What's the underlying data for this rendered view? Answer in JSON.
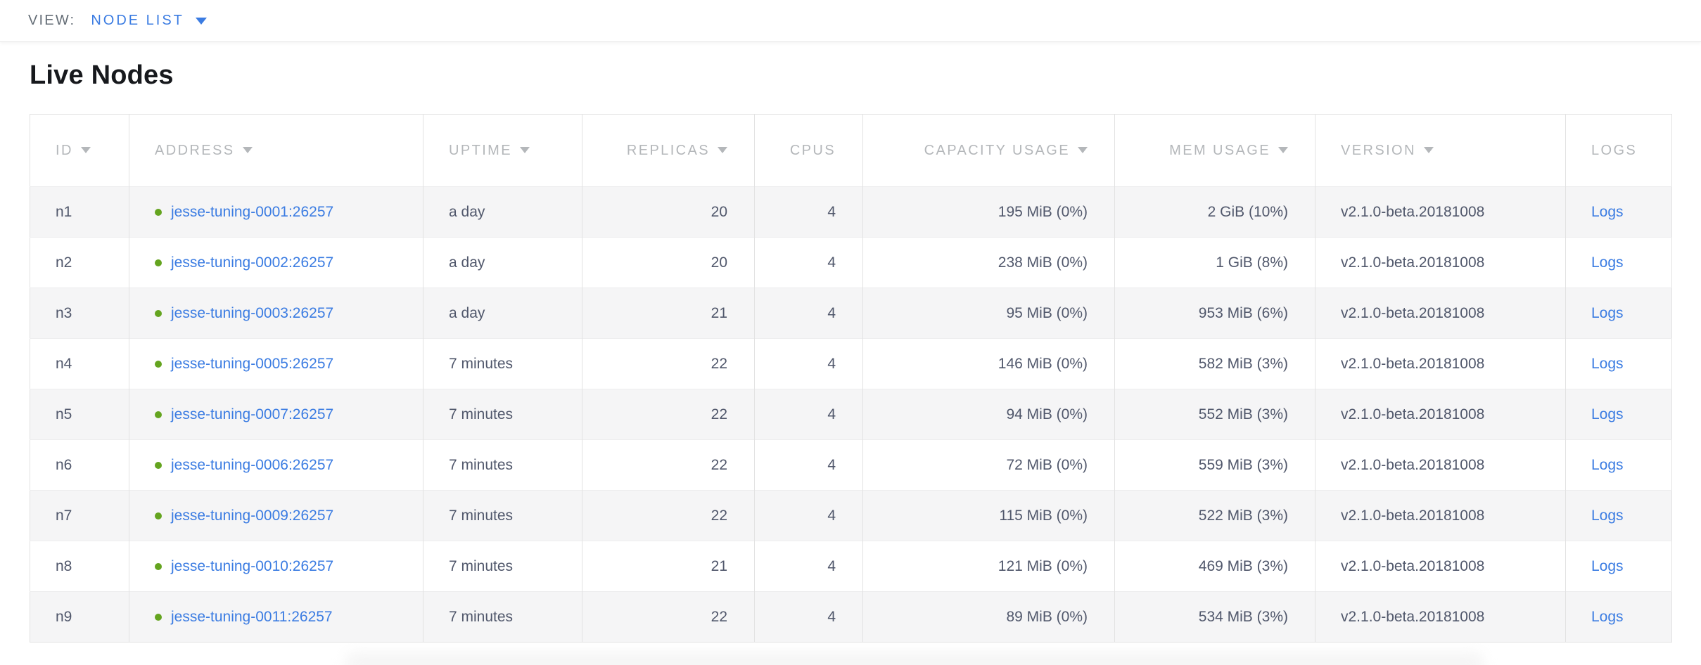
{
  "toolbar": {
    "view_label": "VIEW:",
    "view_value": "NODE LIST"
  },
  "page": {
    "title": "Live Nodes"
  },
  "colors": {
    "accent_blue": "#3b7ce2",
    "status_green": "#64a41f",
    "header_gray": "#b4b7ba",
    "cell_text": "#50576b",
    "row_stripe": "#f5f5f6"
  },
  "icons": {
    "view_caret": "caret-down-icon",
    "header_sort": "sort-desc-icon",
    "node_status": "green-dot-icon"
  },
  "table": {
    "headers": [
      {
        "label": "ID",
        "sorted": true
      },
      {
        "label": "ADDRESS",
        "sorted": true
      },
      {
        "label": "UPTIME",
        "sorted": true
      },
      {
        "label": "REPLICAS",
        "sorted": true
      },
      {
        "label": "CPUS",
        "sorted": false
      },
      {
        "label": "CAPACITY USAGE",
        "sorted": true
      },
      {
        "label": "MEM USAGE",
        "sorted": true
      },
      {
        "label": "VERSION",
        "sorted": true
      },
      {
        "label": "LOGS",
        "sorted": false
      }
    ],
    "rows": [
      {
        "id": "n1",
        "address": "jesse-tuning-0001:26257",
        "uptime": "a day",
        "replicas": "20",
        "cpus": "4",
        "capacity": "195 MiB (0%)",
        "mem": "2 GiB (10%)",
        "version": "v2.1.0-beta.20181008",
        "logs": "Logs"
      },
      {
        "id": "n2",
        "address": "jesse-tuning-0002:26257",
        "uptime": "a day",
        "replicas": "20",
        "cpus": "4",
        "capacity": "238 MiB (0%)",
        "mem": "1 GiB (8%)",
        "version": "v2.1.0-beta.20181008",
        "logs": "Logs"
      },
      {
        "id": "n3",
        "address": "jesse-tuning-0003:26257",
        "uptime": "a day",
        "replicas": "21",
        "cpus": "4",
        "capacity": "95 MiB (0%)",
        "mem": "953 MiB (6%)",
        "version": "v2.1.0-beta.20181008",
        "logs": "Logs"
      },
      {
        "id": "n4",
        "address": "jesse-tuning-0005:26257",
        "uptime": "7 minutes",
        "replicas": "22",
        "cpus": "4",
        "capacity": "146 MiB (0%)",
        "mem": "582 MiB (3%)",
        "version": "v2.1.0-beta.20181008",
        "logs": "Logs"
      },
      {
        "id": "n5",
        "address": "jesse-tuning-0007:26257",
        "uptime": "7 minutes",
        "replicas": "22",
        "cpus": "4",
        "capacity": "94 MiB (0%)",
        "mem": "552 MiB (3%)",
        "version": "v2.1.0-beta.20181008",
        "logs": "Logs"
      },
      {
        "id": "n6",
        "address": "jesse-tuning-0006:26257",
        "uptime": "7 minutes",
        "replicas": "22",
        "cpus": "4",
        "capacity": "72 MiB (0%)",
        "mem": "559 MiB (3%)",
        "version": "v2.1.0-beta.20181008",
        "logs": "Logs"
      },
      {
        "id": "n7",
        "address": "jesse-tuning-0009:26257",
        "uptime": "7 minutes",
        "replicas": "22",
        "cpus": "4",
        "capacity": "115 MiB (0%)",
        "mem": "522 MiB (3%)",
        "version": "v2.1.0-beta.20181008",
        "logs": "Logs"
      },
      {
        "id": "n8",
        "address": "jesse-tuning-0010:26257",
        "uptime": "7 minutes",
        "replicas": "21",
        "cpus": "4",
        "capacity": "121 MiB (0%)",
        "mem": "469 MiB (3%)",
        "version": "v2.1.0-beta.20181008",
        "logs": "Logs"
      },
      {
        "id": "n9",
        "address": "jesse-tuning-0011:26257",
        "uptime": "7 minutes",
        "replicas": "22",
        "cpus": "4",
        "capacity": "89 MiB (0%)",
        "mem": "534 MiB (3%)",
        "version": "v2.1.0-beta.20181008",
        "logs": "Logs"
      }
    ]
  }
}
